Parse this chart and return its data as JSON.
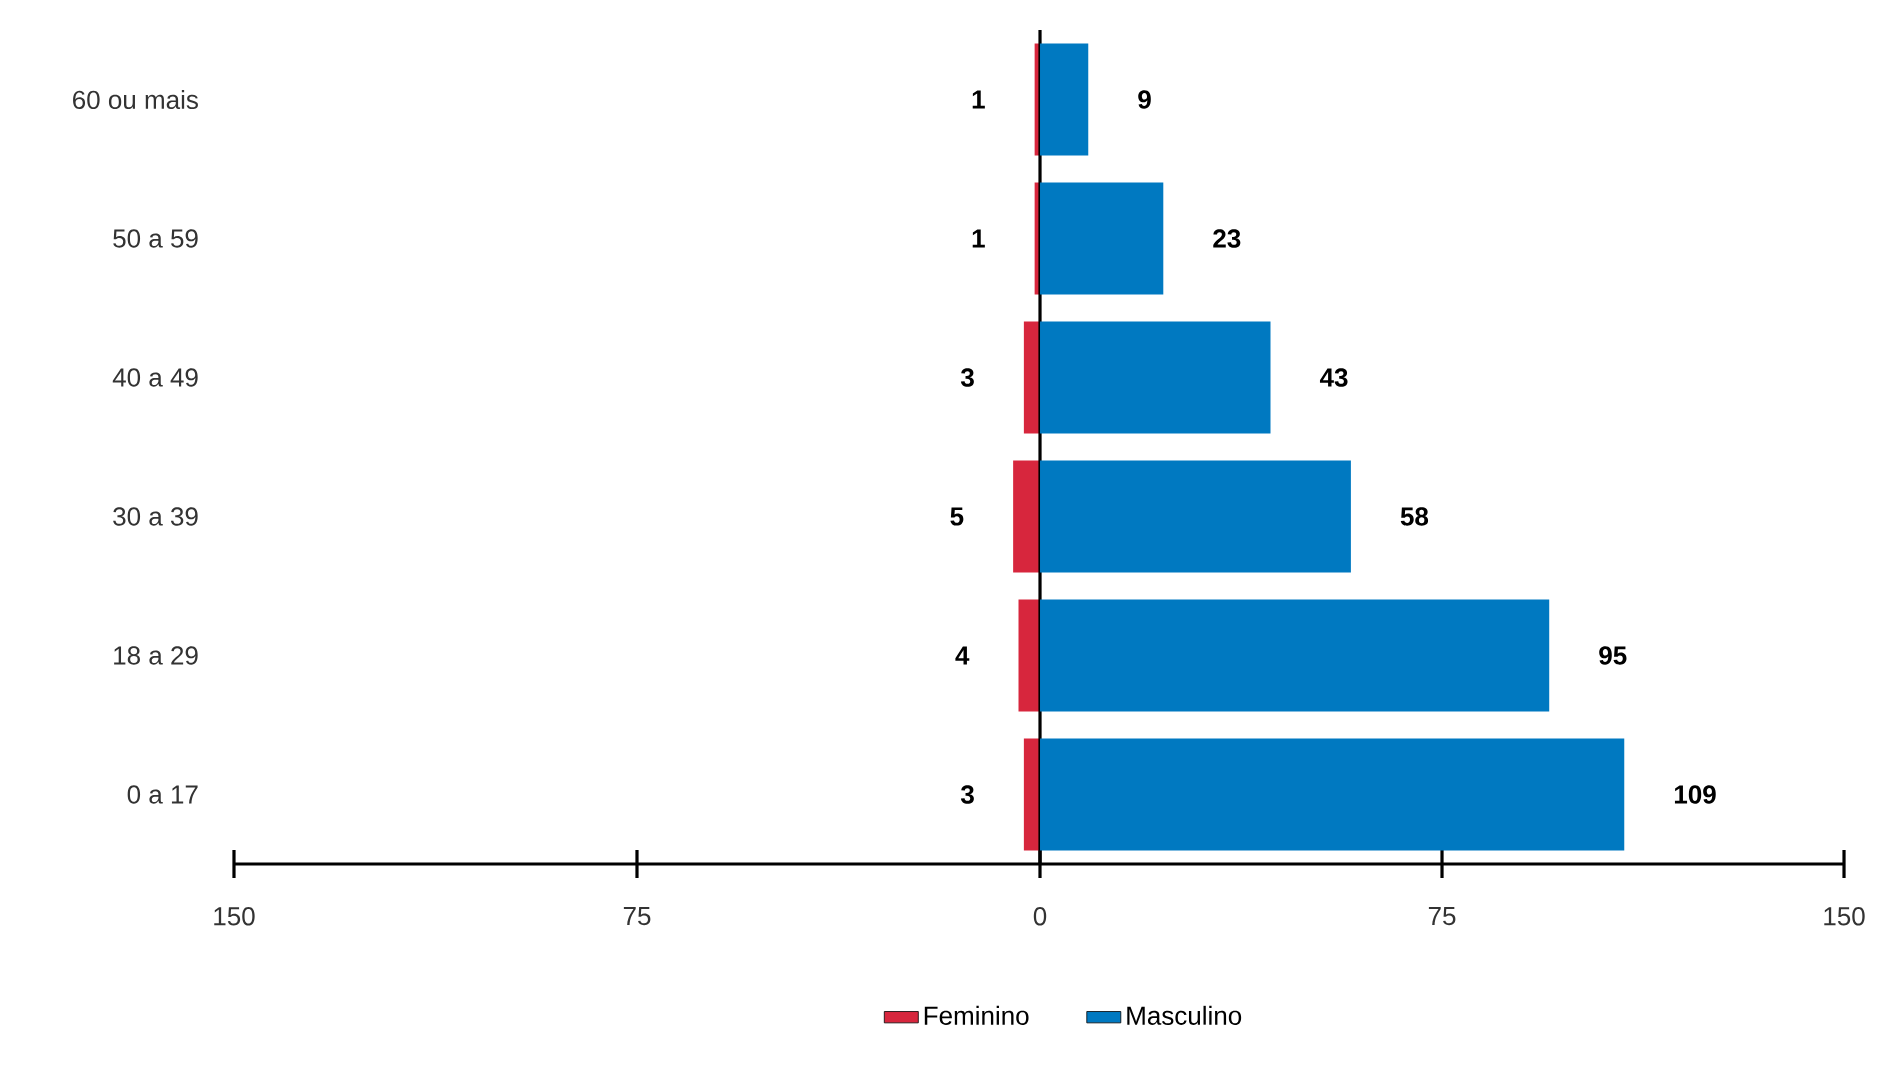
{
  "chart_data": [
    {
      "type": "bar",
      "orientation": "horizontal",
      "categories": [
        "60 ou mais",
        "50 a 59",
        "40 a 49",
        "30 a 39",
        "18 a 29",
        "0 a 17"
      ],
      "series": [
        {
          "name": "Feminino",
          "color": "#d7263d",
          "values": [
            1,
            1,
            3,
            5,
            4,
            3
          ]
        }
      ],
      "xlim": [
        150,
        0
      ],
      "xticks": [
        150,
        75,
        0
      ],
      "data_labels": true,
      "legend": "bottom right",
      "grid": false
    },
    {
      "type": "bar",
      "orientation": "horizontal",
      "series": [
        {
          "name": "Masculino",
          "color": "#0079c1",
          "values": [
            9,
            23,
            43,
            58,
            95,
            109
          ]
        }
      ],
      "xlim": [
        0,
        150
      ],
      "xticks": [
        75,
        150
      ],
      "data_labels": true,
      "legend": "bottom left",
      "grid": false,
      "tick_labels": "x"
    }
  ]
}
